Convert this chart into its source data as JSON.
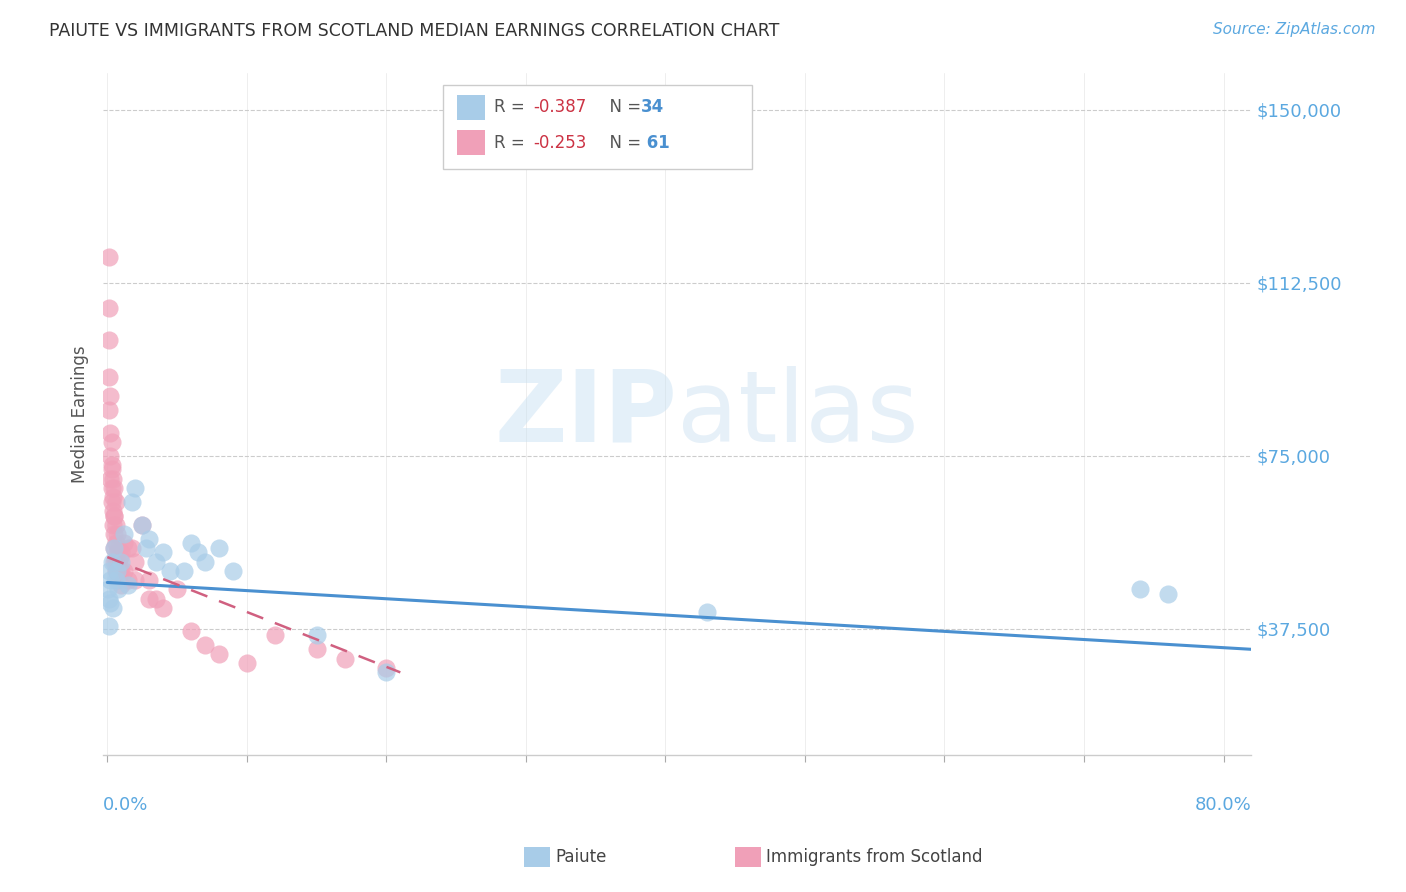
{
  "title": "PAIUTE VS IMMIGRANTS FROM SCOTLAND MEDIAN EARNINGS CORRELATION CHART",
  "source": "Source: ZipAtlas.com",
  "ylabel": "Median Earnings",
  "ytick_labels": [
    "$37,500",
    "$75,000",
    "$112,500",
    "$150,000"
  ],
  "ytick_values": [
    37500,
    75000,
    112500,
    150000
  ],
  "ymin": 10000,
  "ymax": 158000,
  "xmin": -0.003,
  "xmax": 0.82,
  "background_color": "#ffffff",
  "paiute_color": "#a8cce8",
  "scotland_color": "#f0a0b8",
  "paiute_line_color": "#4a90d0",
  "scotland_line_color": "#d06080",
  "ytick_color": "#5ba8e0",
  "xtick_color": "#5ba8e0",
  "title_color": "#333333",
  "source_color": "#5ba8e0",
  "paiute_points": [
    [
      0.0008,
      46000
    ],
    [
      0.001,
      38000
    ],
    [
      0.0012,
      50000
    ],
    [
      0.0015,
      44000
    ],
    [
      0.0018,
      48000
    ],
    [
      0.002,
      43000
    ],
    [
      0.003,
      52000
    ],
    [
      0.004,
      42000
    ],
    [
      0.005,
      55000
    ],
    [
      0.006,
      48000
    ],
    [
      0.007,
      50000
    ],
    [
      0.008,
      46000
    ],
    [
      0.01,
      52000
    ],
    [
      0.012,
      58000
    ],
    [
      0.015,
      47000
    ],
    [
      0.018,
      65000
    ],
    [
      0.02,
      68000
    ],
    [
      0.025,
      60000
    ],
    [
      0.028,
      55000
    ],
    [
      0.03,
      57000
    ],
    [
      0.035,
      52000
    ],
    [
      0.04,
      54000
    ],
    [
      0.045,
      50000
    ],
    [
      0.055,
      50000
    ],
    [
      0.06,
      56000
    ],
    [
      0.065,
      54000
    ],
    [
      0.07,
      52000
    ],
    [
      0.08,
      55000
    ],
    [
      0.09,
      50000
    ],
    [
      0.15,
      36000
    ],
    [
      0.2,
      28000
    ],
    [
      0.43,
      41000
    ],
    [
      0.74,
      46000
    ],
    [
      0.76,
      45000
    ]
  ],
  "scotland_points": [
    [
      0.001,
      118000
    ],
    [
      0.001,
      107000
    ],
    [
      0.001,
      92000
    ],
    [
      0.001,
      85000
    ],
    [
      0.002,
      80000
    ],
    [
      0.002,
      75000
    ],
    [
      0.002,
      70000
    ],
    [
      0.003,
      78000
    ],
    [
      0.003,
      72000
    ],
    [
      0.003,
      68000
    ],
    [
      0.003,
      65000
    ],
    [
      0.004,
      70000
    ],
    [
      0.004,
      63000
    ],
    [
      0.004,
      60000
    ],
    [
      0.005,
      68000
    ],
    [
      0.005,
      62000
    ],
    [
      0.005,
      58000
    ],
    [
      0.005,
      55000
    ],
    [
      0.005,
      52000
    ],
    [
      0.006,
      65000
    ],
    [
      0.006,
      60000
    ],
    [
      0.006,
      56000
    ],
    [
      0.006,
      52000
    ],
    [
      0.006,
      50000
    ],
    [
      0.007,
      58000
    ],
    [
      0.007,
      54000
    ],
    [
      0.007,
      50000
    ],
    [
      0.008,
      55000
    ],
    [
      0.008,
      52000
    ],
    [
      0.008,
      48000
    ],
    [
      0.009,
      53000
    ],
    [
      0.009,
      50000
    ],
    [
      0.01,
      54000
    ],
    [
      0.01,
      50000
    ],
    [
      0.01,
      47000
    ],
    [
      0.012,
      56000
    ],
    [
      0.012,
      50000
    ],
    [
      0.015,
      55000
    ],
    [
      0.015,
      48000
    ],
    [
      0.018,
      55000
    ],
    [
      0.02,
      52000
    ],
    [
      0.02,
      48000
    ],
    [
      0.025,
      60000
    ],
    [
      0.03,
      48000
    ],
    [
      0.03,
      44000
    ],
    [
      0.035,
      44000
    ],
    [
      0.04,
      42000
    ],
    [
      0.05,
      46000
    ],
    [
      0.06,
      37000
    ],
    [
      0.07,
      34000
    ],
    [
      0.08,
      32000
    ],
    [
      0.1,
      30000
    ],
    [
      0.12,
      36000
    ],
    [
      0.15,
      33000
    ],
    [
      0.17,
      31000
    ],
    [
      0.2,
      29000
    ],
    [
      0.001,
      100000
    ],
    [
      0.002,
      88000
    ],
    [
      0.003,
      73000
    ],
    [
      0.004,
      66000
    ],
    [
      0.005,
      62000
    ]
  ],
  "paiute_line_x": [
    0.0,
    0.82
  ],
  "paiute_line_y": [
    47500,
    33000
  ],
  "scotland_line_x": [
    0.0,
    0.21
  ],
  "scotland_line_y": [
    53000,
    28000
  ]
}
